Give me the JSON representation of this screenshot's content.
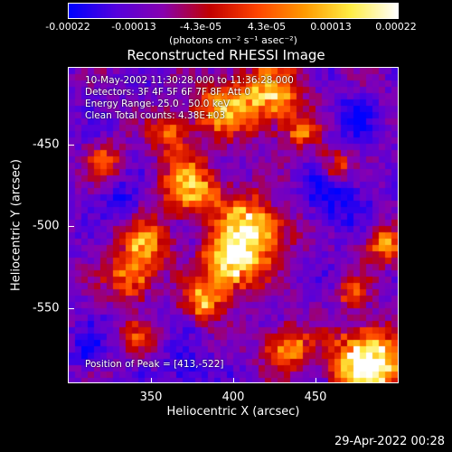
{
  "colorbar": {
    "ticks": [
      "-0.00022",
      "-0.00013",
      "-4.3e-05",
      "4.3e-05",
      "0.00013",
      "0.00022"
    ],
    "units": "(photons cm⁻² s⁻¹ asec⁻²)",
    "colors": [
      "#0000ff",
      "#5500dd",
      "#8800b0",
      "#c20000",
      "#ff4400",
      "#ff9900",
      "#ffee44",
      "#ffffff"
    ]
  },
  "plot": {
    "title": "Reconstructed RHESSI Image",
    "xlabel": "Heliocentric X (arcsec)",
    "ylabel": "Heliocentric Y (arcsec)",
    "xticks": [
      "350",
      "400",
      "450"
    ],
    "yticks": [
      "-450",
      "-500",
      "-550"
    ],
    "info": [
      "10-May-2002 11:30:28.000 to 11:36:28.000",
      "Detectors: 3F 4F 5F 6F 7F 8F, Att 0",
      "Energy Range: 25.0 - 50.0 keV",
      "Clean     Total counts: 4.38E+03"
    ],
    "peak": "Position of Peak = [413,-522]"
  },
  "timestamp": "29-Apr-2022 00:28"
}
